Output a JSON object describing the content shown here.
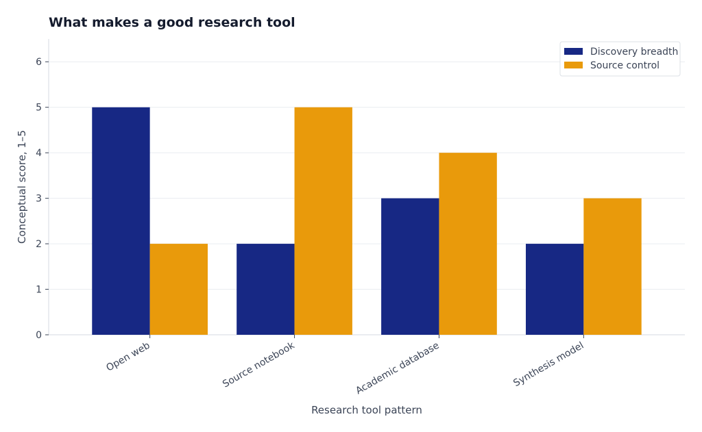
{
  "chart_data": {
    "type": "bar",
    "title": "What makes a good research tool",
    "xlabel": "Research tool pattern",
    "ylabel": "Conceptual score, 1–5",
    "categories": [
      "Open web",
      "Source notebook",
      "Academic database",
      "Synthesis model"
    ],
    "series": [
      {
        "name": "Discovery breadth",
        "values": [
          5,
          2,
          3,
          2
        ],
        "color": "#172884"
      },
      {
        "name": "Source control",
        "values": [
          2,
          5,
          4,
          3
        ],
        "color": "#E99A0B"
      }
    ],
    "ylim": [
      0,
      6.5
    ],
    "yticks": [
      0,
      1,
      2,
      3,
      4,
      5,
      6
    ],
    "grid": true,
    "legend_position": "top-right",
    "colors": {
      "title": "#141B2D",
      "axis_text": "#3B4456",
      "grid": "#E9ECF0",
      "axis": "#D6DAE0"
    }
  }
}
